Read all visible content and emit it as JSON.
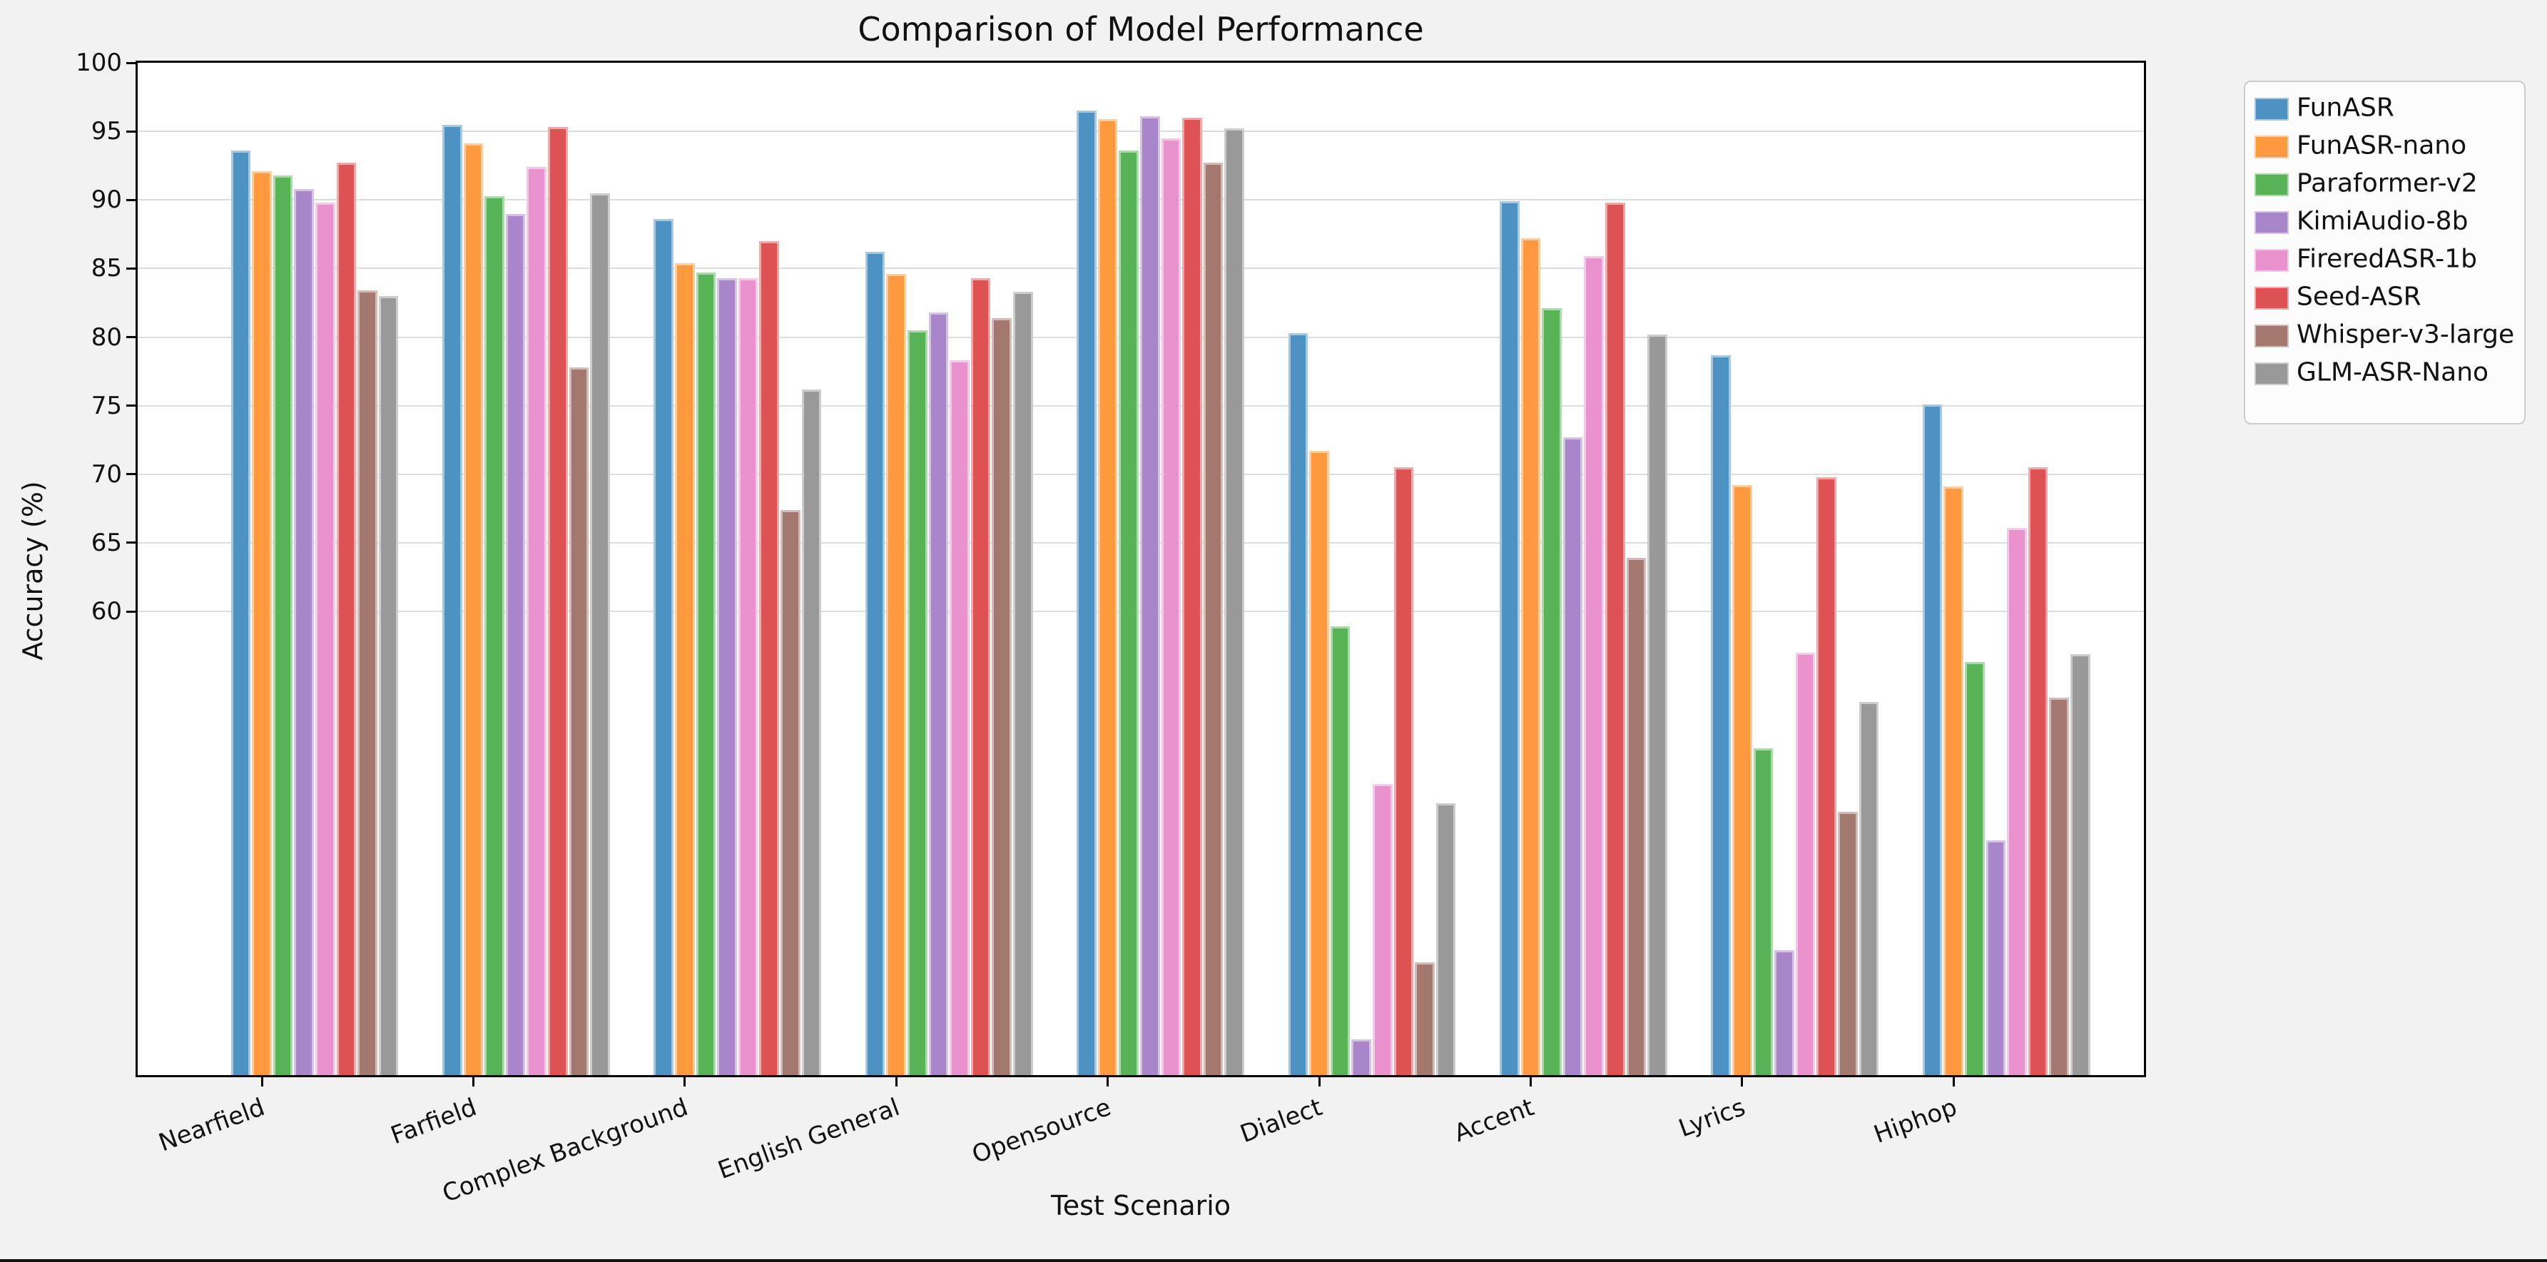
{
  "chart_data": {
    "type": "bar",
    "title": "Comparison of Model Performance",
    "xlabel": "Test Scenario",
    "ylabel": "Accuracy (%)",
    "categories": [
      "Nearfield",
      "Farfield",
      "Complex Background",
      "English General",
      "Opensource",
      "Dialect",
      "Accent",
      "Lyrics",
      "Hiphop"
    ],
    "series": [
      {
        "name": "FunASR",
        "color": "#4C92C3",
        "values": [
          93.6,
          95.5,
          88.6,
          86.2,
          96.5,
          80.3,
          89.9,
          78.7,
          75.1
        ]
      },
      {
        "name": "FunASR-nano",
        "color": "#FF993E",
        "values": [
          92.1,
          94.1,
          85.4,
          84.6,
          95.9,
          71.7,
          87.2,
          69.2,
          69.1
        ]
      },
      {
        "name": "Paraformer-v2",
        "color": "#56B356",
        "values": [
          91.8,
          90.3,
          84.7,
          80.5,
          93.6,
          58.9,
          82.1,
          50.0,
          56.3
        ]
      },
      {
        "name": "KimiAudio-8b",
        "color": "#A985CA",
        "values": [
          90.8,
          89.0,
          84.3,
          81.8,
          96.1,
          28.8,
          72.7,
          35.3,
          43.3
        ]
      },
      {
        "name": "FireredASR-1b",
        "color": "#E992CE",
        "values": [
          89.8,
          92.4,
          84.3,
          78.3,
          94.5,
          47.4,
          85.9,
          57.0,
          66.1
        ]
      },
      {
        "name": "Seed-ASR",
        "color": "#DE5253",
        "values": [
          92.7,
          95.3,
          87.0,
          84.3,
          96.0,
          70.5,
          89.8,
          69.8,
          70.5
        ]
      },
      {
        "name": "Whisper-v3-large",
        "color": "#A3786F",
        "values": [
          83.4,
          77.8,
          67.4,
          81.4,
          92.7,
          34.4,
          63.9,
          45.4,
          53.7
        ]
      },
      {
        "name": "GLM-ASR-Nano",
        "color": "#999999",
        "values": [
          83.0,
          90.5,
          76.2,
          83.3,
          95.2,
          46.0,
          80.2,
          53.4,
          56.9
        ]
      }
    ],
    "y_ticks": [
      60,
      65,
      70,
      75,
      80,
      85,
      90,
      95,
      100
    ],
    "ylim": [
      26.2,
      100
    ],
    "grid": true,
    "legend_position": "outside upper right",
    "plot_bg": "#ffffff",
    "figure_bg": "#f2f2f2",
    "gridline_color": "#dddddd"
  }
}
